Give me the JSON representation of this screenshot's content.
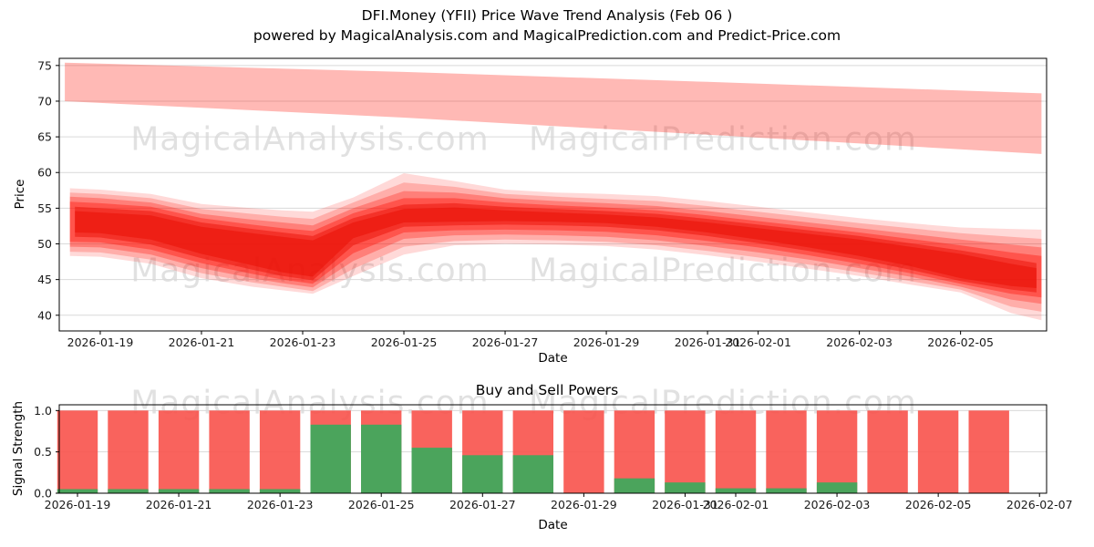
{
  "title": "DFI.Money (YFII) Price Wave Trend Analysis (Feb 06 )",
  "subtitle": "powered by MagicalAnalysis.com and MagicalPrediction.com and Predict-Price.com",
  "watermarks": {
    "left": "MagicalAnalysis.com",
    "right": "MagicalPrediction.com"
  },
  "colors": {
    "grid": "#d9d9d9",
    "spine": "#000000",
    "tick_text": "#1a1a1a",
    "wave_red": "#ff150a",
    "wave_core_red": "#ea1309",
    "upper_band_red": "#ff2619",
    "bar_red": "#f8524b",
    "bar_green": "#41a85c"
  },
  "chart_data": [
    {
      "type": "area",
      "title": "",
      "xlabel": "Date",
      "ylabel": "Price",
      "ylim": [
        37.8,
        76.0
      ],
      "xlim": [
        -0.81,
        18.7
      ],
      "grid": "horizontal",
      "yticks": [
        {
          "v": 40,
          "label": "40"
        },
        {
          "v": 45,
          "label": "45"
        },
        {
          "v": 50,
          "label": "50"
        },
        {
          "v": 55,
          "label": "55"
        },
        {
          "v": 60,
          "label": "60"
        },
        {
          "v": 65,
          "label": "65"
        },
        {
          "v": 70,
          "label": "70"
        },
        {
          "v": 75,
          "label": "75"
        }
      ],
      "xticks": [
        {
          "x": 0,
          "label": "2026-01-19"
        },
        {
          "x": 2,
          "label": "2026-01-21"
        },
        {
          "x": 4,
          "label": "2026-01-23"
        },
        {
          "x": 6,
          "label": "2026-01-25"
        },
        {
          "x": 8,
          "label": "2026-01-27"
        },
        {
          "x": 10,
          "label": "2026-01-29"
        },
        {
          "x": 12,
          "label": "2026-01-31"
        },
        {
          "x": 13,
          "label": "2026-02-01"
        },
        {
          "x": 15,
          "label": "2026-02-03"
        },
        {
          "x": 17,
          "label": "2026-02-05"
        }
      ],
      "bands": [
        {
          "name": "upper-forecast-band",
          "color": "#ff2619",
          "alpha": 0.32,
          "x": [
            -0.7,
            6,
            12,
            18.6
          ],
          "low": [
            70.0,
            67.7,
            65.3,
            62.6
          ],
          "high": [
            75.4,
            74.1,
            72.7,
            71.1
          ]
        },
        {
          "name": "wave-band-outer",
          "color": "#ff150a",
          "alpha": 0.16,
          "x": [
            -0.6,
            0,
            1,
            2,
            3,
            3.6,
            4.2,
            5,
            6,
            7,
            8,
            9,
            10,
            11,
            12,
            13,
            14,
            15,
            16,
            17,
            18,
            18.6
          ],
          "low": [
            48.3,
            48.2,
            47.2,
            45.2,
            44.0,
            43.5,
            43.0,
            45.5,
            48.5,
            49.8,
            50.0,
            49.9,
            49.7,
            49.2,
            48.4,
            47.5,
            46.5,
            45.5,
            44.3,
            43.2,
            40.3,
            39.3
          ],
          "high": [
            57.8,
            57.6,
            57.0,
            55.6,
            55.0,
            54.7,
            54.5,
            56.5,
            59.9,
            58.8,
            57.6,
            57.2,
            57.0,
            56.7,
            56.0,
            55.2,
            54.4,
            53.6,
            52.9,
            52.3,
            52.1,
            52.0
          ]
        },
        {
          "name": "wave-band-2",
          "color": "#ff150a",
          "alpha": 0.22,
          "x": [
            -0.6,
            0,
            1,
            2,
            3,
            3.6,
            4.2,
            5,
            6,
            7,
            8,
            9,
            10,
            11,
            12,
            13,
            14,
            15,
            16,
            17,
            18,
            18.6
          ],
          "low": [
            48.9,
            48.8,
            47.8,
            45.9,
            44.6,
            44.0,
            43.4,
            46.5,
            49.6,
            50.4,
            50.6,
            50.5,
            50.3,
            49.8,
            49.0,
            48.1,
            47.1,
            46.0,
            44.8,
            43.6,
            41.2,
            40.5
          ],
          "high": [
            57.2,
            57.0,
            56.4,
            54.9,
            54.2,
            53.8,
            53.5,
            55.8,
            58.6,
            58.0,
            57.0,
            56.6,
            56.3,
            56.0,
            55.3,
            54.5,
            53.7,
            52.9,
            52.2,
            51.5,
            51.0,
            50.7
          ]
        },
        {
          "name": "wave-band-3",
          "color": "#ff150a",
          "alpha": 0.3,
          "x": [
            -0.6,
            0,
            1,
            2,
            3,
            3.6,
            4.2,
            5,
            6,
            7,
            8,
            9,
            10,
            11,
            12,
            13,
            14,
            15,
            16,
            17,
            18,
            18.6
          ],
          "low": [
            49.6,
            49.5,
            48.5,
            46.6,
            45.2,
            44.5,
            43.9,
            47.6,
            50.7,
            51.2,
            51.3,
            51.2,
            51.0,
            50.5,
            49.7,
            48.8,
            47.8,
            46.6,
            45.4,
            44.0,
            42.2,
            41.6
          ],
          "high": [
            56.6,
            56.4,
            55.8,
            54.2,
            53.4,
            53.0,
            52.6,
            55.0,
            57.4,
            57.2,
            56.4,
            56.0,
            55.7,
            55.3,
            54.6,
            53.8,
            53.0,
            52.2,
            51.4,
            50.6,
            49.9,
            49.5
          ]
        },
        {
          "name": "wave-band-4",
          "color": "#ff150a",
          "alpha": 0.4,
          "x": [
            -0.6,
            0,
            1,
            2,
            3,
            3.6,
            4.2,
            5,
            6,
            7,
            8,
            9,
            10,
            11,
            12,
            13,
            14,
            15,
            16,
            17,
            18,
            18.6
          ],
          "low": [
            50.3,
            50.2,
            49.2,
            47.3,
            45.8,
            45.0,
            44.4,
            48.7,
            51.6,
            51.9,
            52.0,
            51.9,
            51.7,
            51.2,
            50.4,
            49.5,
            48.4,
            47.2,
            45.9,
            44.4,
            43.0,
            42.5
          ],
          "high": [
            55.9,
            55.7,
            55.2,
            53.6,
            52.7,
            52.2,
            51.8,
            54.3,
            56.4,
            56.4,
            55.8,
            55.4,
            55.1,
            54.7,
            54.0,
            53.2,
            52.4,
            51.6,
            50.7,
            49.8,
            48.8,
            48.3
          ]
        },
        {
          "name": "wave-band-5",
          "color": "#ea1309",
          "alpha": 0.52,
          "x": [
            -0.5,
            0,
            1,
            2,
            3,
            3.6,
            4.2,
            5,
            6,
            7,
            8,
            9,
            10,
            11,
            12,
            13,
            14,
            15,
            16,
            17,
            18,
            18.5
          ],
          "low": [
            51.0,
            50.9,
            49.9,
            48.0,
            46.4,
            45.5,
            44.9,
            49.8,
            52.4,
            52.6,
            52.7,
            52.6,
            52.4,
            51.9,
            51.1,
            50.1,
            49.0,
            47.8,
            46.4,
            44.8,
            43.6,
            43.2
          ],
          "high": [
            55.2,
            55.0,
            54.6,
            53.0,
            52.1,
            51.6,
            51.1,
            53.6,
            55.5,
            55.7,
            55.2,
            54.9,
            54.6,
            54.2,
            53.5,
            52.7,
            51.9,
            51.1,
            50.1,
            49.1,
            47.9,
            47.3
          ]
        },
        {
          "name": "wave-band-core",
          "color": "#ea1309",
          "alpha": 0.6,
          "x": [
            -0.5,
            0,
            1,
            2,
            3,
            3.6,
            4.2,
            5,
            6,
            7,
            8,
            9,
            10,
            11,
            12,
            13,
            14,
            15,
            16,
            17,
            18,
            18.5
          ],
          "low": [
            51.6,
            51.5,
            50.6,
            48.6,
            47.0,
            46.0,
            45.4,
            50.8,
            53.0,
            53.1,
            53.2,
            53.1,
            52.9,
            52.4,
            51.6,
            50.6,
            49.5,
            48.3,
            46.9,
            45.2,
            44.1,
            43.8
          ],
          "high": [
            54.6,
            54.4,
            54.0,
            52.4,
            51.5,
            51.0,
            50.5,
            53.0,
            54.9,
            55.1,
            54.7,
            54.4,
            54.1,
            53.7,
            53.0,
            52.2,
            51.4,
            50.6,
            49.6,
            48.6,
            47.2,
            46.6
          ]
        }
      ]
    },
    {
      "type": "bar",
      "title": "Buy and Sell Powers",
      "xlabel": "Date",
      "ylabel": "Signal Strength",
      "ylim": [
        0,
        1.07
      ],
      "xlim": [
        -0.36,
        19.14
      ],
      "bar_width": 0.8,
      "yticks": [
        {
          "v": 0,
          "label": "0.0"
        },
        {
          "v": 0.5,
          "label": "0.5"
        },
        {
          "v": 1,
          "label": "1.0"
        }
      ],
      "xticks": [
        {
          "x": 0,
          "label": "2026-01-19"
        },
        {
          "x": 2,
          "label": "2026-01-21"
        },
        {
          "x": 4,
          "label": "2026-01-23"
        },
        {
          "x": 6,
          "label": "2026-01-25"
        },
        {
          "x": 8,
          "label": "2026-01-27"
        },
        {
          "x": 10,
          "label": "2026-01-29"
        },
        {
          "x": 12,
          "label": "2026-01-31"
        },
        {
          "x": 13,
          "label": "2026-02-01"
        },
        {
          "x": 15,
          "label": "2026-02-03"
        },
        {
          "x": 17,
          "label": "2026-02-05"
        },
        {
          "x": 19,
          "label": "2026-02-07"
        }
      ],
      "categories": [
        "2026-01-19",
        "2026-01-20",
        "2026-01-21",
        "2026-01-22",
        "2026-01-23",
        "2026-01-24",
        "2026-01-25",
        "2026-01-26",
        "2026-01-27",
        "2026-01-28",
        "2026-01-29",
        "2026-01-30",
        "2026-01-31",
        "2026-02-01",
        "2026-02-02",
        "2026-02-03",
        "2026-02-04",
        "2026-02-05",
        "2026-02-06"
      ],
      "series": [
        {
          "name": "sell",
          "color": "#f8524b",
          "values": [
            1,
            1,
            1,
            1,
            1,
            1,
            1,
            1,
            1,
            1,
            1,
            1,
            1,
            1,
            1,
            1,
            1,
            1,
            1
          ]
        },
        {
          "name": "buy",
          "color": "#41a85c",
          "values": [
            0.05,
            0.05,
            0.05,
            0.05,
            0.05,
            0.83,
            0.83,
            0.55,
            0.46,
            0.46,
            0,
            0.18,
            0.13,
            0.06,
            0.06,
            0.13,
            0,
            0,
            0
          ]
        }
      ]
    }
  ]
}
